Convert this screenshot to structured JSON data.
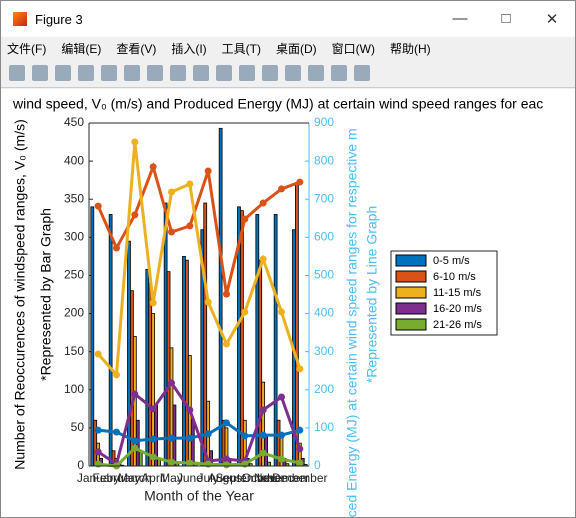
{
  "window": {
    "title": "Figure 3",
    "menu": [
      "文件(F)",
      "编辑(E)",
      "查看(V)",
      "插入(I)",
      "工具(T)",
      "桌面(D)",
      "窗口(W)",
      "帮助(H)"
    ]
  },
  "chart_data": {
    "type": "bar",
    "title": "wind speed, V₀ (m/s) and Produced Energy (MJ) at certain wind speed ranges for eac",
    "x_label": "Month of the Year",
    "y_label": "Number of Reoccurences of windspeed ranges, V₀ (m/s)",
    "y_sublabel": "*Represented by Bar Graph",
    "y2_label": "oduced Energy (MJ) at certain wind speed ranges for respective m",
    "y2_sublabel": "*Represented by Line Graph",
    "categories": [
      "January",
      "February",
      "March",
      "April",
      "May",
      "June",
      "July",
      "August",
      "September",
      "October",
      "November",
      "December"
    ],
    "ylim": [
      0,
      450
    ],
    "yticks": [
      0,
      50,
      100,
      150,
      200,
      250,
      300,
      350,
      400,
      450
    ],
    "y2lim": [
      0,
      900
    ],
    "y2ticks": [
      0,
      100,
      200,
      300,
      400,
      500,
      600,
      700,
      800,
      900
    ],
    "y2_color": "#4dbeee",
    "legend": "right",
    "series": [
      {
        "name": "0-5 m/s",
        "color": "#0072bd",
        "values": [
          340,
          330,
          295,
          258,
          345,
          275,
          310,
          443,
          340,
          330,
          330,
          310
        ],
        "line_values": [
          94,
          89,
          66,
          71,
          73,
          73,
          84,
          113,
          79,
          81,
          81,
          94
        ]
      },
      {
        "name": "6-10 m/s",
        "color": "#d95319",
        "values": [
          60,
          20,
          230,
          240,
          255,
          270,
          345,
          60,
          335,
          270,
          60,
          370
        ],
        "line_values": [
          682,
          572,
          659,
          785,
          614,
          630,
          774,
          451,
          648,
          690,
          727,
          745
        ]
      },
      {
        "name": "11-15 m/s",
        "color": "#edb120",
        "values": [
          30,
          10,
          170,
          200,
          155,
          145,
          85,
          50,
          60,
          110,
          40,
          30
        ],
        "line_values": [
          294,
          239,
          850,
          428,
          719,
          740,
          430,
          320,
          404,
          543,
          404,
          255
        ]
      },
      {
        "name": "16-20 m/s",
        "color": "#7e2f8e",
        "values": [
          10,
          5,
          60,
          80,
          80,
          60,
          20,
          10,
          10,
          40,
          10,
          10
        ],
        "line_values": [
          37,
          5,
          189,
          150,
          218,
          147,
          13,
          18,
          13,
          147,
          181,
          45
        ]
      },
      {
        "name": "21-26 m/s",
        "color": "#77ac30",
        "values": [
          2,
          1,
          20,
          10,
          5,
          5,
          3,
          2,
          3,
          5,
          3,
          2
        ],
        "line_values": [
          5,
          0,
          47,
          24,
          10,
          8,
          5,
          3,
          5,
          34,
          18,
          8
        ]
      }
    ]
  }
}
